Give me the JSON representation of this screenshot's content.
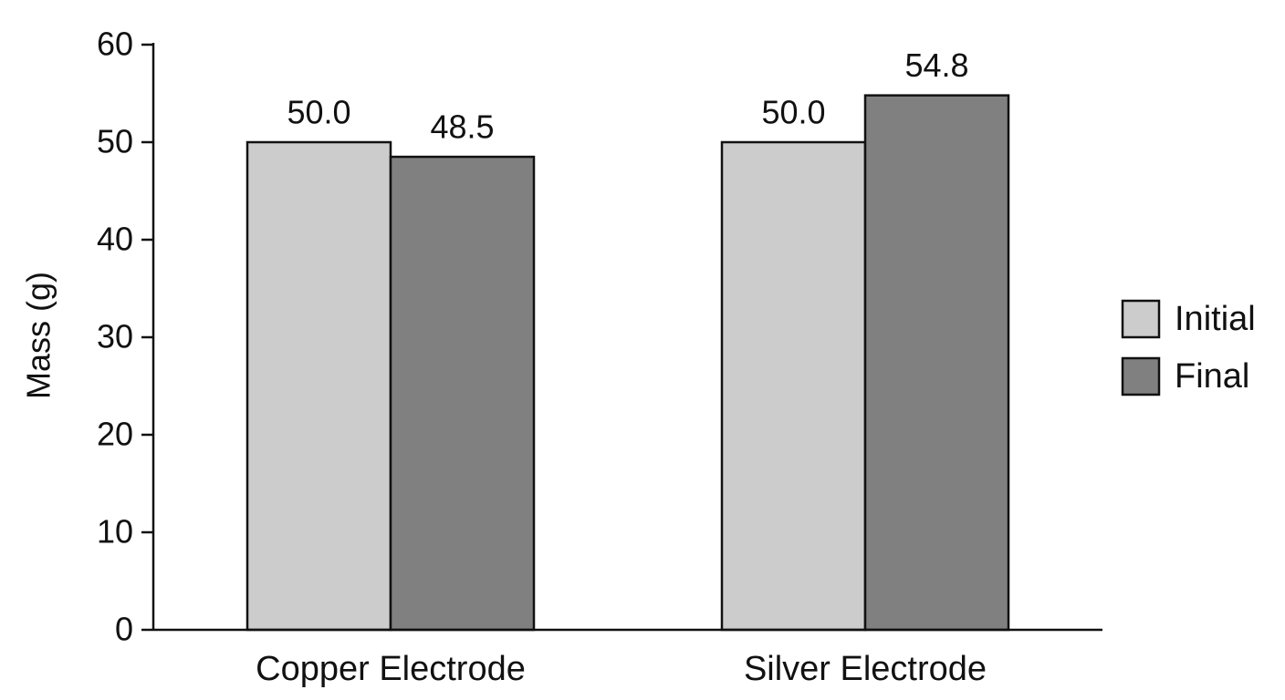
{
  "chart_data": {
    "type": "bar",
    "y_label": "Mass (g)",
    "categories": [
      "Copper Electrode",
      "Silver Electrode"
    ],
    "series": [
      {
        "name": "Initial",
        "color": "#cccccc",
        "values": [
          50.0,
          50.0
        ],
        "value_labels": [
          "50.0",
          "50.0"
        ]
      },
      {
        "name": "Final",
        "color": "#808080",
        "values": [
          48.5,
          54.8
        ]
      }
    ],
    "ylim": [
      0,
      60
    ],
    "yticks": [
      0,
      10,
      20,
      30,
      40,
      50,
      60
    ],
    "grid": false,
    "legend": "right"
  }
}
